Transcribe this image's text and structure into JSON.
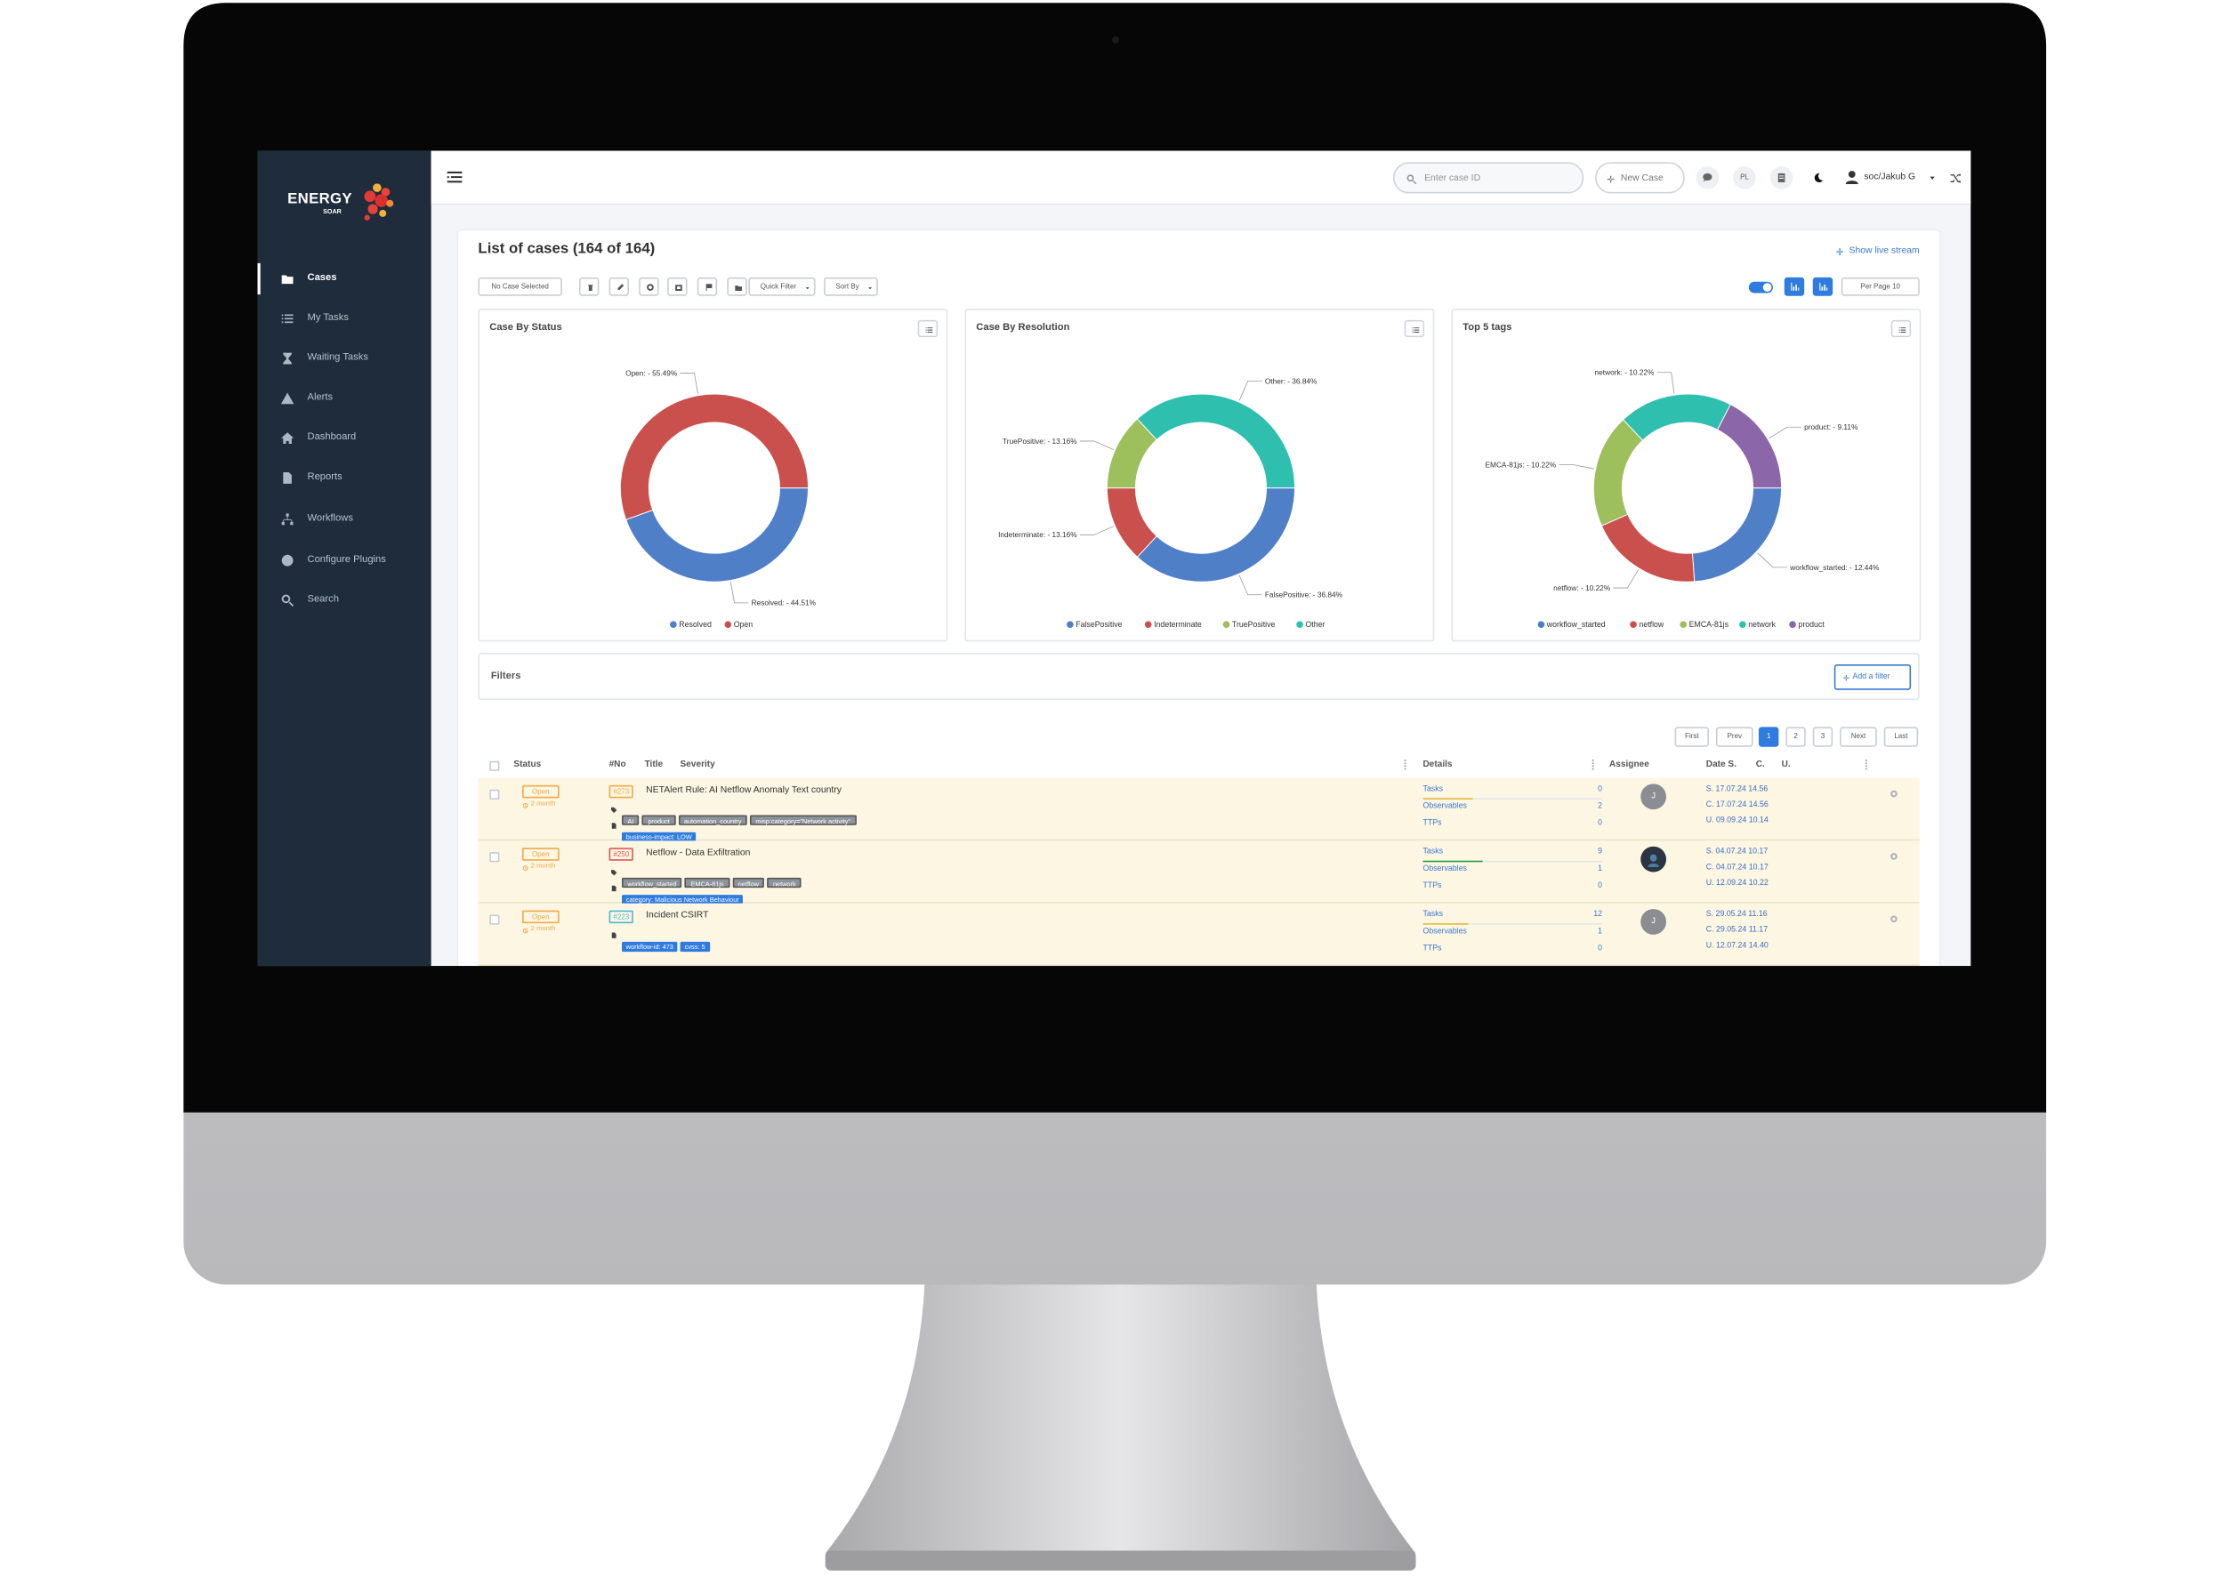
{
  "sidebar": {
    "brand": "ENERGY",
    "brand_sub": "SOAR",
    "active": 0,
    "menu": [
      "Cases",
      "My Tasks",
      "Waiting Tasks",
      "Alerts",
      "Dashboard",
      "Reports",
      "Workflows",
      "Configure Plugins",
      "Search"
    ]
  },
  "topbar": {
    "search_placeholder": "Enter case ID",
    "new_case": "New Case",
    "language": "PL",
    "user": "soc/Jakub G"
  },
  "cases": {
    "title": "List of cases (164 of 164)",
    "live_stream": "Show live stream",
    "no_selection": "No Case Selected",
    "quick_filter": "Quick Filter",
    "sort_by": "Sort By",
    "per_page": "Per Page 10"
  },
  "chart_data": [
    {
      "type": "pie",
      "title": "Case By Status",
      "categories": [
        "Resolved",
        "Open"
      ],
      "values": [
        44.51,
        55.49
      ],
      "value_labels": [
        "Resolved: - 44.51%",
        "Open: - 55.49%"
      ],
      "colors": [
        "#4f7fc7",
        "#c9504d"
      ]
    },
    {
      "type": "pie",
      "title": "Case By Resolution",
      "categories": [
        "FalsePositive",
        "Indeterminate",
        "TruePositive",
        "Other"
      ],
      "values": [
        36.84,
        13.16,
        13.16,
        36.84
      ],
      "value_labels": [
        "FalsePositive: - 36.84%",
        "Indeterminate: - 13.16%",
        "TruePositive: - 13.16%",
        "Other: - 36.84%"
      ],
      "colors": [
        "#4f7fc7",
        "#c9504d",
        "#9dbf5c",
        "#2fbfae"
      ]
    },
    {
      "type": "pie",
      "title": "Top 5 tags",
      "categories": [
        "workflow_started",
        "netflow",
        "EMCA-81js",
        "network",
        "product"
      ],
      "values": [
        12.44,
        10.22,
        10.22,
        10.22,
        9.11
      ],
      "value_labels": [
        "workflow_started: - 12.44%",
        "netflow: - 10.22%",
        "EMCA-81js: - 10.22%",
        "network: - 10.22%",
        "product: - 9.11%"
      ],
      "colors": [
        "#4f7fc7",
        "#c9504d",
        "#9dbf5c",
        "#2fbfae",
        "#8b66a8"
      ]
    }
  ],
  "filters": {
    "title": "Filters",
    "add": "Add a filter"
  },
  "pagination": {
    "pages": [
      "First",
      "Prev",
      "1",
      "2",
      "3",
      "Next",
      "Last"
    ],
    "active": 2
  },
  "table": {
    "headers": [
      "Status",
      "#No",
      "Title",
      "Severity",
      "Details",
      "Assignee",
      "Date S.",
      "C.",
      "U."
    ],
    "detail_labels": [
      "Tasks",
      "Observables",
      "TTPs"
    ],
    "rows": [
      {
        "status": "Open",
        "age": "2 month",
        "number": "#273",
        "number_color": "#f0a94a",
        "title": "NETAlert Rule: AI Netflow Anomaly Text country",
        "tags": [
          "AI",
          "product",
          "automation_country",
          "misp:category=\"Network activity\""
        ],
        "fields": [
          "business-impact: LOW"
        ],
        "tasks": 0,
        "observables": 2,
        "ttps": 0,
        "assignee": "J",
        "dates": [
          "S. 17.07.24 14.56",
          "C. 17.07.24 14.56",
          "U. 09.09.24 10.14"
        ]
      },
      {
        "status": "Open",
        "age": "2 month",
        "number": "#250",
        "number_color": "#e05555",
        "title": "Netflow - Data Exfiltration",
        "tags": [
          "workflow_started",
          "EMCA-81js",
          "netflow",
          "network"
        ],
        "fields": [
          "category: Malicious Network Behaviour"
        ],
        "tasks": 9,
        "observables": 1,
        "ttps": 0,
        "dates": [
          "S. 04.07.24 10.17",
          "C. 04.07.24 10.17",
          "U. 12.09.24 10.22"
        ]
      },
      {
        "status": "Open",
        "age": "2 month",
        "number": "#223",
        "number_color": "#4cb8d6",
        "title": "Incident CSIRT",
        "fields": [
          "workflow-id: 473",
          "cvss: 5"
        ],
        "tasks": 12,
        "observables": 1,
        "ttps": 0,
        "assignee": "J",
        "dates": [
          "S. 29.05.24 11.16",
          "C. 29.05.24 11.17",
          "U. 12.07.24 14.40"
        ]
      }
    ]
  }
}
